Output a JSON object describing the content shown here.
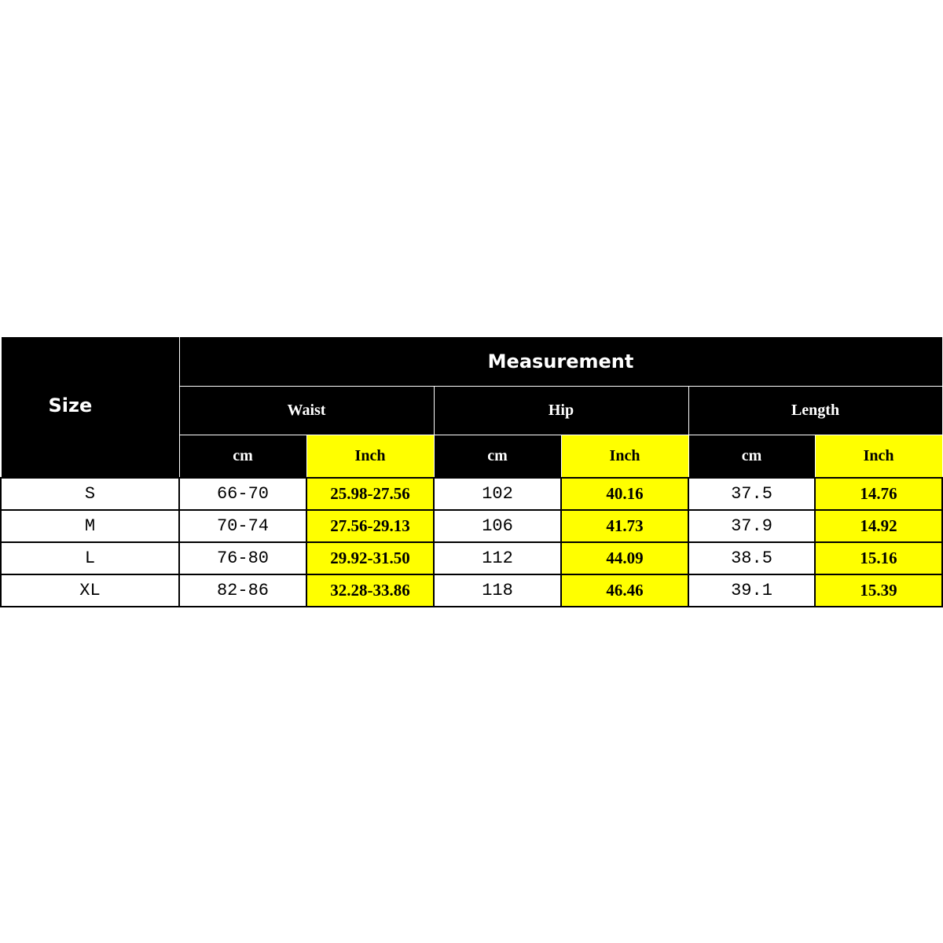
{
  "header": {
    "size_label": "Size",
    "measurement_label": "Measurement",
    "groups": [
      "Waist",
      "Hip",
      "Length"
    ],
    "units": [
      "cm",
      "Inch",
      "cm",
      "Inch",
      "cm",
      "Inch"
    ]
  },
  "rows": [
    {
      "size": "S",
      "cells": [
        "66-70",
        "25.98-27.56",
        "102",
        "40.16",
        "37.5",
        "14.76"
      ]
    },
    {
      "size": "M",
      "cells": [
        "70-74",
        "27.56-29.13",
        "106",
        "41.73",
        "37.9",
        "14.92"
      ]
    },
    {
      "size": "L",
      "cells": [
        "76-80",
        "29.92-31.50",
        "112",
        "44.09",
        "38.5",
        "15.16"
      ]
    },
    {
      "size": "XL",
      "cells": [
        "82-86",
        "32.28-33.86",
        "118",
        "46.46",
        "39.1",
        "15.39"
      ]
    }
  ],
  "colors": {
    "header_bg": "#000000",
    "inch_highlight": "#ffff00"
  }
}
